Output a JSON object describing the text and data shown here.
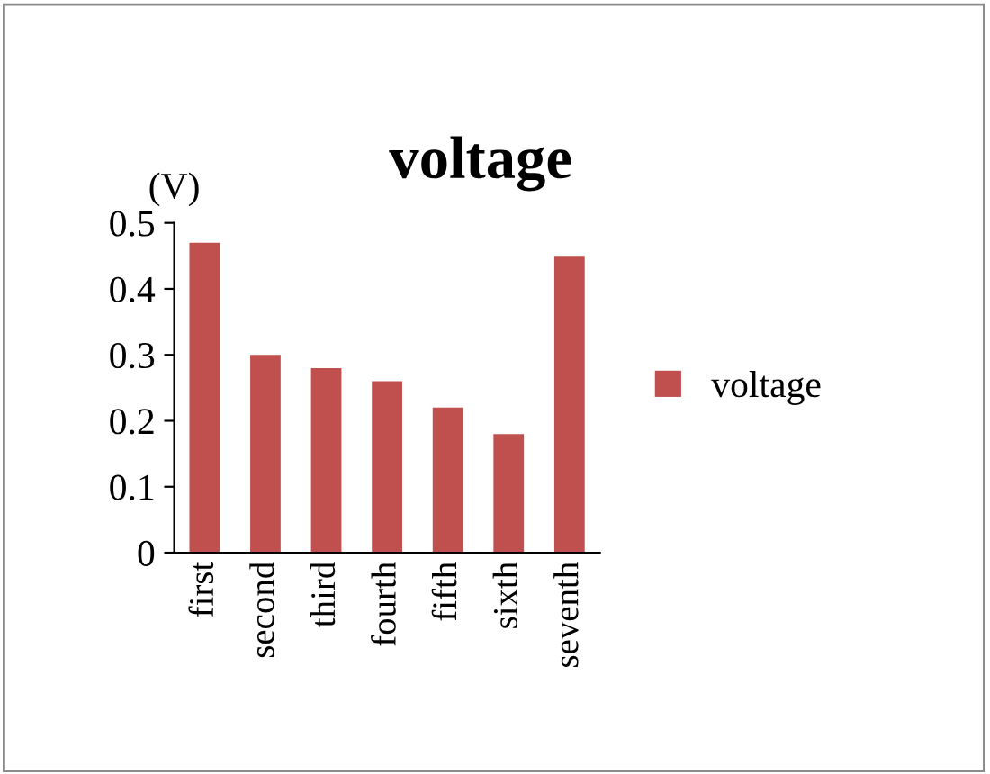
{
  "chart_data": {
    "type": "bar",
    "title": "voltage",
    "ylabel": "(V)",
    "categories": [
      "first",
      "second",
      "third",
      "fourth",
      "fifth",
      "sixth",
      "seventh"
    ],
    "series": [
      {
        "name": "voltage",
        "color": "#c0504d",
        "values": [
          0.47,
          0.3,
          0.28,
          0.26,
          0.22,
          0.18,
          0.45
        ]
      }
    ],
    "ylim": [
      0,
      0.5
    ],
    "yticks": [
      0,
      0.1,
      0.2,
      0.3,
      0.4,
      0.5
    ],
    "grid": false,
    "legend": "right"
  }
}
